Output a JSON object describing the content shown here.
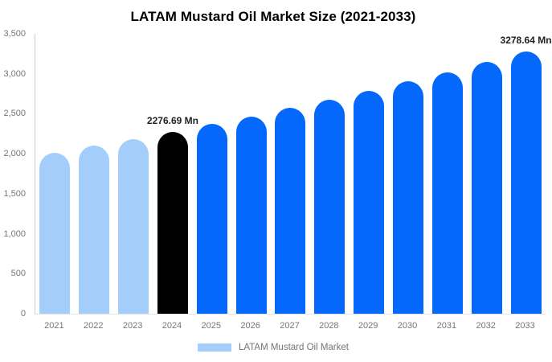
{
  "header": {
    "title": "LATAM Mustard Oil Market Size (2021-2033)"
  },
  "legend": {
    "items": [
      {
        "label": "LATAM Mustard Oil Market",
        "swatch_color": "#A3CDFA"
      }
    ]
  },
  "colors": {
    "historical_bar": "#A3CDFA",
    "base_year_bar": "#000000",
    "forecast_bar": "#0568FC",
    "axis_line": "#cccccc",
    "tick_text": "#757575",
    "data_label_text": "#222222"
  },
  "chart_data": {
    "type": "bar",
    "title": "LATAM Mustard Oil Market Size (2021-2033)",
    "unit": "Mn",
    "categories": [
      "2021",
      "2022",
      "2023",
      "2024",
      "2025",
      "2026",
      "2027",
      "2028",
      "2029",
      "2030",
      "2031",
      "2032",
      "2033"
    ],
    "values": [
      2016,
      2100,
      2186,
      2276.69,
      2371,
      2469,
      2571,
      2677,
      2787,
      2902,
      3022,
      3147,
      3278.64
    ],
    "bar_colors": [
      "#A3CDFA",
      "#A3CDFA",
      "#A3CDFA",
      "#000000",
      "#0568FC",
      "#0568FC",
      "#0568FC",
      "#0568FC",
      "#0568FC",
      "#0568FC",
      "#0568FC",
      "#0568FC",
      "#0568FC"
    ],
    "data_labels": [
      null,
      null,
      null,
      "2276.69 Mn",
      null,
      null,
      null,
      null,
      null,
      null,
      null,
      null,
      "3278.64 Mn"
    ],
    "xlabel": "",
    "ylabel": "",
    "ylim": [
      0,
      3500
    ],
    "y_tick_step": 500,
    "y_ticks": [
      "0",
      "500",
      "1,000",
      "1,500",
      "2,000",
      "2,500",
      "3,000",
      "3,500"
    ],
    "grid": false,
    "legend_position": "bottom",
    "legend_entries": [
      "LATAM Mustard Oil Market"
    ]
  }
}
